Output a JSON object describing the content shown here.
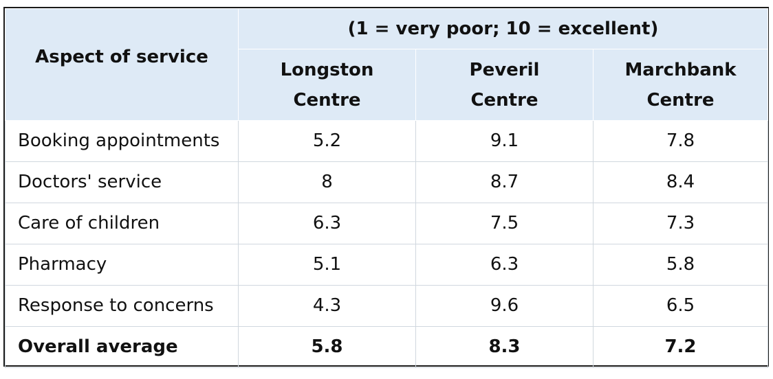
{
  "chart_data": {
    "type": "table",
    "title": "",
    "scale_note": "(1 = very poor; 10 = excellent)",
    "row_header": "Aspect of service",
    "columns": [
      "Longston Centre",
      "Peveril Centre",
      "Marchbank Centre"
    ],
    "column_lines": [
      [
        "Longston",
        "Centre"
      ],
      [
        "Peveril",
        "Centre"
      ],
      [
        "Marchbank",
        "Centre"
      ]
    ],
    "rows": [
      {
        "label": "Booking appointments",
        "values": [
          "5.2",
          "9.1",
          "7.8"
        ]
      },
      {
        "label": "Doctors' service",
        "values": [
          "8",
          "8.7",
          "8.4"
        ]
      },
      {
        "label": "Care of children",
        "values": [
          "6.3",
          "7.5",
          "7.3"
        ]
      },
      {
        "label": "Pharmacy",
        "values": [
          "5.1",
          "6.3",
          "5.8"
        ]
      },
      {
        "label": "Response to concerns",
        "values": [
          "4.3",
          "9.6",
          "6.5"
        ]
      }
    ],
    "summary_row": {
      "label": "Overall average",
      "values": [
        "5.8",
        "8.3",
        "7.2"
      ]
    }
  },
  "colors": {
    "header_background": "#deeaf6",
    "grid_line": "#d0d7de",
    "outer_border": "#1a1a1a"
  }
}
